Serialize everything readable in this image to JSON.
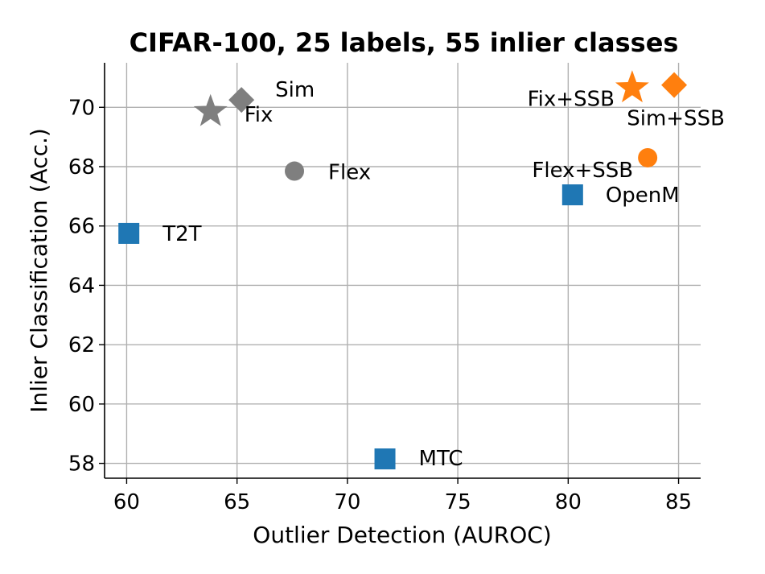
{
  "chart_data": {
    "type": "scatter",
    "title": "CIFAR-100, 25 labels, 55 inlier classes",
    "xlabel": "Outlier Detection (AUROC)",
    "ylabel": "Inlier Classification (Acc.)",
    "xlim": [
      59,
      86
    ],
    "ylim": [
      57.5,
      71.5
    ],
    "xticks": [
      60,
      65,
      70,
      75,
      80,
      85
    ],
    "yticks": [
      58,
      60,
      62,
      64,
      66,
      68,
      70
    ],
    "grid": true,
    "colors": {
      "gray": "#7f7f7f",
      "blue": "#1f77b4",
      "orange": "#ff7f0e"
    },
    "points": [
      {
        "label": "Fix",
        "x": 63.8,
        "y": 69.85,
        "marker": "star",
        "color": "gray"
      },
      {
        "label": "Sim",
        "x": 65.2,
        "y": 70.25,
        "marker": "diamond",
        "color": "gray"
      },
      {
        "label": "Flex",
        "x": 67.6,
        "y": 67.85,
        "marker": "circle",
        "color": "gray"
      },
      {
        "label": "T2T",
        "x": 60.1,
        "y": 65.75,
        "marker": "square",
        "color": "blue"
      },
      {
        "label": "MTC",
        "x": 71.7,
        "y": 58.15,
        "marker": "square",
        "color": "blue"
      },
      {
        "label": "OpenM",
        "x": 80.2,
        "y": 67.05,
        "marker": "square",
        "color": "blue"
      },
      {
        "label": "Fix+SSB",
        "x": 82.9,
        "y": 70.65,
        "marker": "star",
        "color": "orange"
      },
      {
        "label": "Sim+SSB",
        "x": 84.8,
        "y": 70.75,
        "marker": "diamond",
        "color": "orange"
      },
      {
        "label": "Flex+SSB",
        "x": 83.6,
        "y": 68.3,
        "marker": "circle",
        "color": "orange"
      }
    ]
  }
}
